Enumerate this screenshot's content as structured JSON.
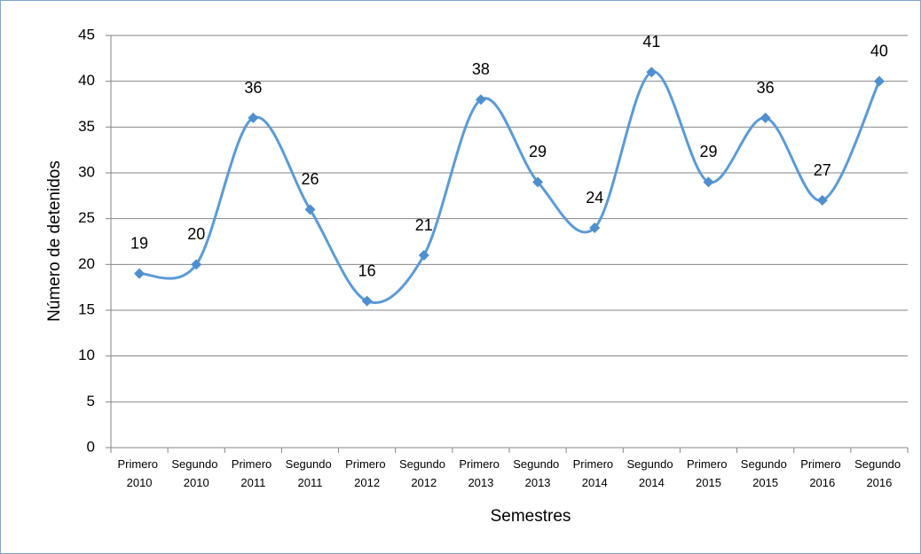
{
  "chart_data": {
    "type": "line",
    "x_label": "Semestres",
    "y_label": "Número de detenidos",
    "categories": [
      "Primero 2010",
      "Segundo 2010",
      "Primero 2011",
      "Segundo 2011",
      "Primero 2012",
      "Segundo 2012",
      "Primero 2013",
      "Segundo 2013",
      "Primero 2014",
      "Segundo 2014",
      "Primero 2015",
      "Segundo 2015",
      "Primero 2016",
      "Segundo 2016"
    ],
    "series": [
      {
        "color": "#5b9bd5",
        "values": [
          19,
          20,
          36,
          26,
          16,
          21,
          38,
          29,
          24,
          41,
          29,
          36,
          27,
          40
        ]
      }
    ],
    "ylim": [
      0,
      45
    ],
    "yticks": [
      0,
      5,
      10,
      15,
      20,
      25,
      30,
      35,
      40,
      45
    ],
    "grid": true,
    "smooth": true
  }
}
